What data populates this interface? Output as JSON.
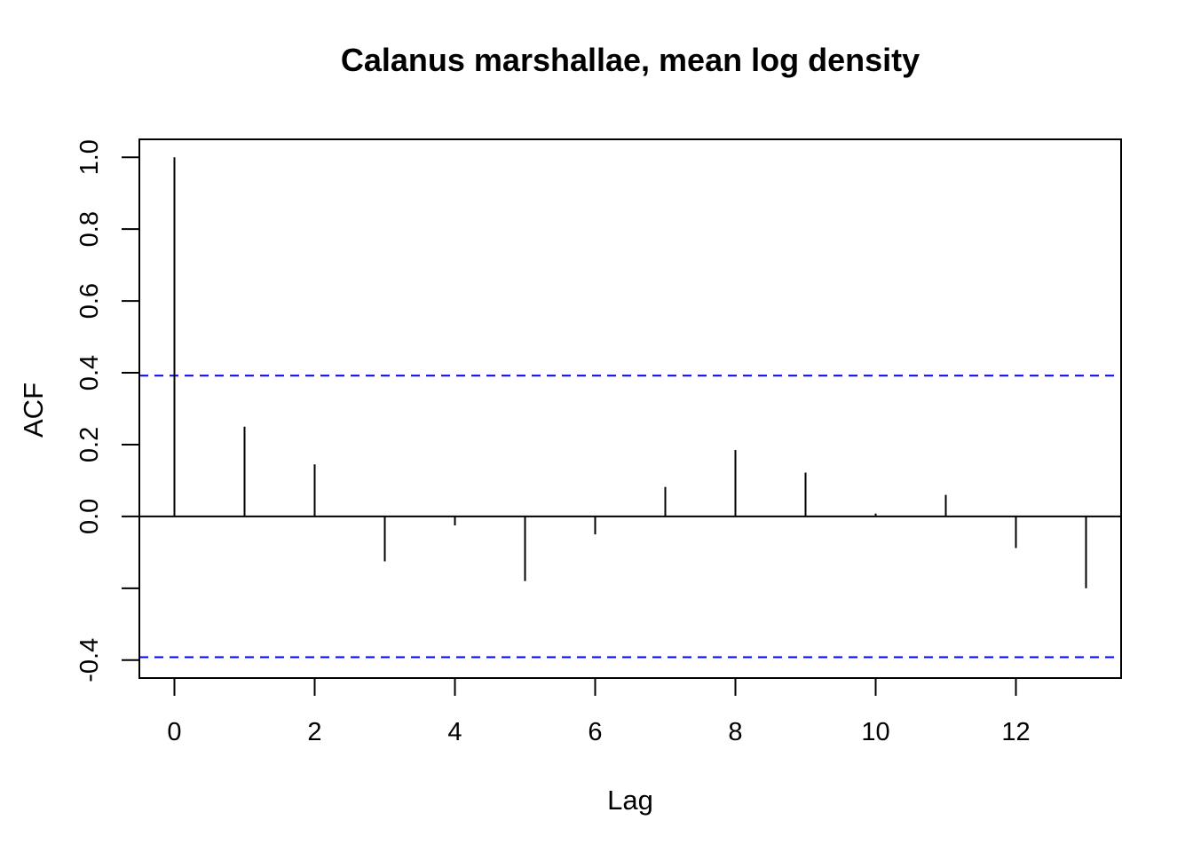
{
  "chart_data": {
    "type": "bar",
    "title": "Calanus marshallae, mean log density",
    "xlabel": "Lag",
    "ylabel": "ACF",
    "x": [
      0,
      1,
      2,
      3,
      4,
      5,
      6,
      7,
      8,
      9,
      10,
      11,
      12,
      13
    ],
    "values": [
      1.0,
      0.25,
      0.145,
      -0.125,
      -0.025,
      -0.18,
      -0.05,
      0.082,
      0.185,
      0.122,
      0.008,
      0.06,
      -0.088,
      -0.2
    ],
    "xlim": [
      -0.5,
      13.5
    ],
    "ylim": [
      -0.45,
      1.05
    ],
    "x_ticks": [
      0,
      2,
      4,
      6,
      8,
      10,
      12
    ],
    "x_tick_labels": [
      "0",
      "2",
      "4",
      "6",
      "8",
      "10",
      "12"
    ],
    "y_ticks": [
      -0.4,
      -0.2,
      0.0,
      0.2,
      0.4,
      0.6,
      0.8,
      1.0
    ],
    "y_tick_labels": [
      "-0.4",
      "",
      "0.0",
      "0.2",
      "0.4",
      "0.6",
      "0.8",
      "1.0"
    ],
    "confidence_bounds": [
      0.392,
      -0.392
    ],
    "colors": {
      "bars": "#000000",
      "bounds": "#0000ff",
      "zero_line": "#000000"
    },
    "grid": false,
    "legend": "none"
  }
}
